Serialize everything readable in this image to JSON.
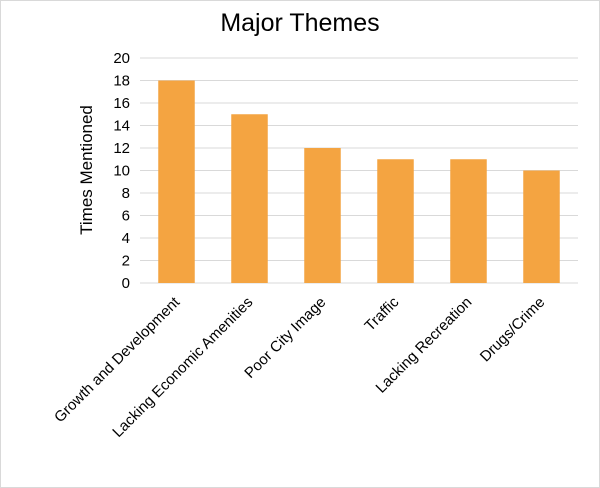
{
  "chart_data": {
    "type": "bar",
    "title": "Major Themes",
    "xlabel": "",
    "ylabel": "Times Mentioned",
    "categories": [
      "Growth and Development",
      "Lacking Economic Amenities",
      "Poor City Image",
      "Traffic",
      "Lacking Recreation",
      "Drugs/Crime"
    ],
    "values": [
      18,
      15,
      12,
      11,
      11,
      10
    ],
    "ylim": [
      0,
      20
    ],
    "yticks": [
      "0",
      "2",
      "4",
      "6",
      "8",
      "10",
      "12",
      "14",
      "16",
      "18",
      "20"
    ],
    "grid": true,
    "legend": "none",
    "bar_color": "#F4A441"
  }
}
